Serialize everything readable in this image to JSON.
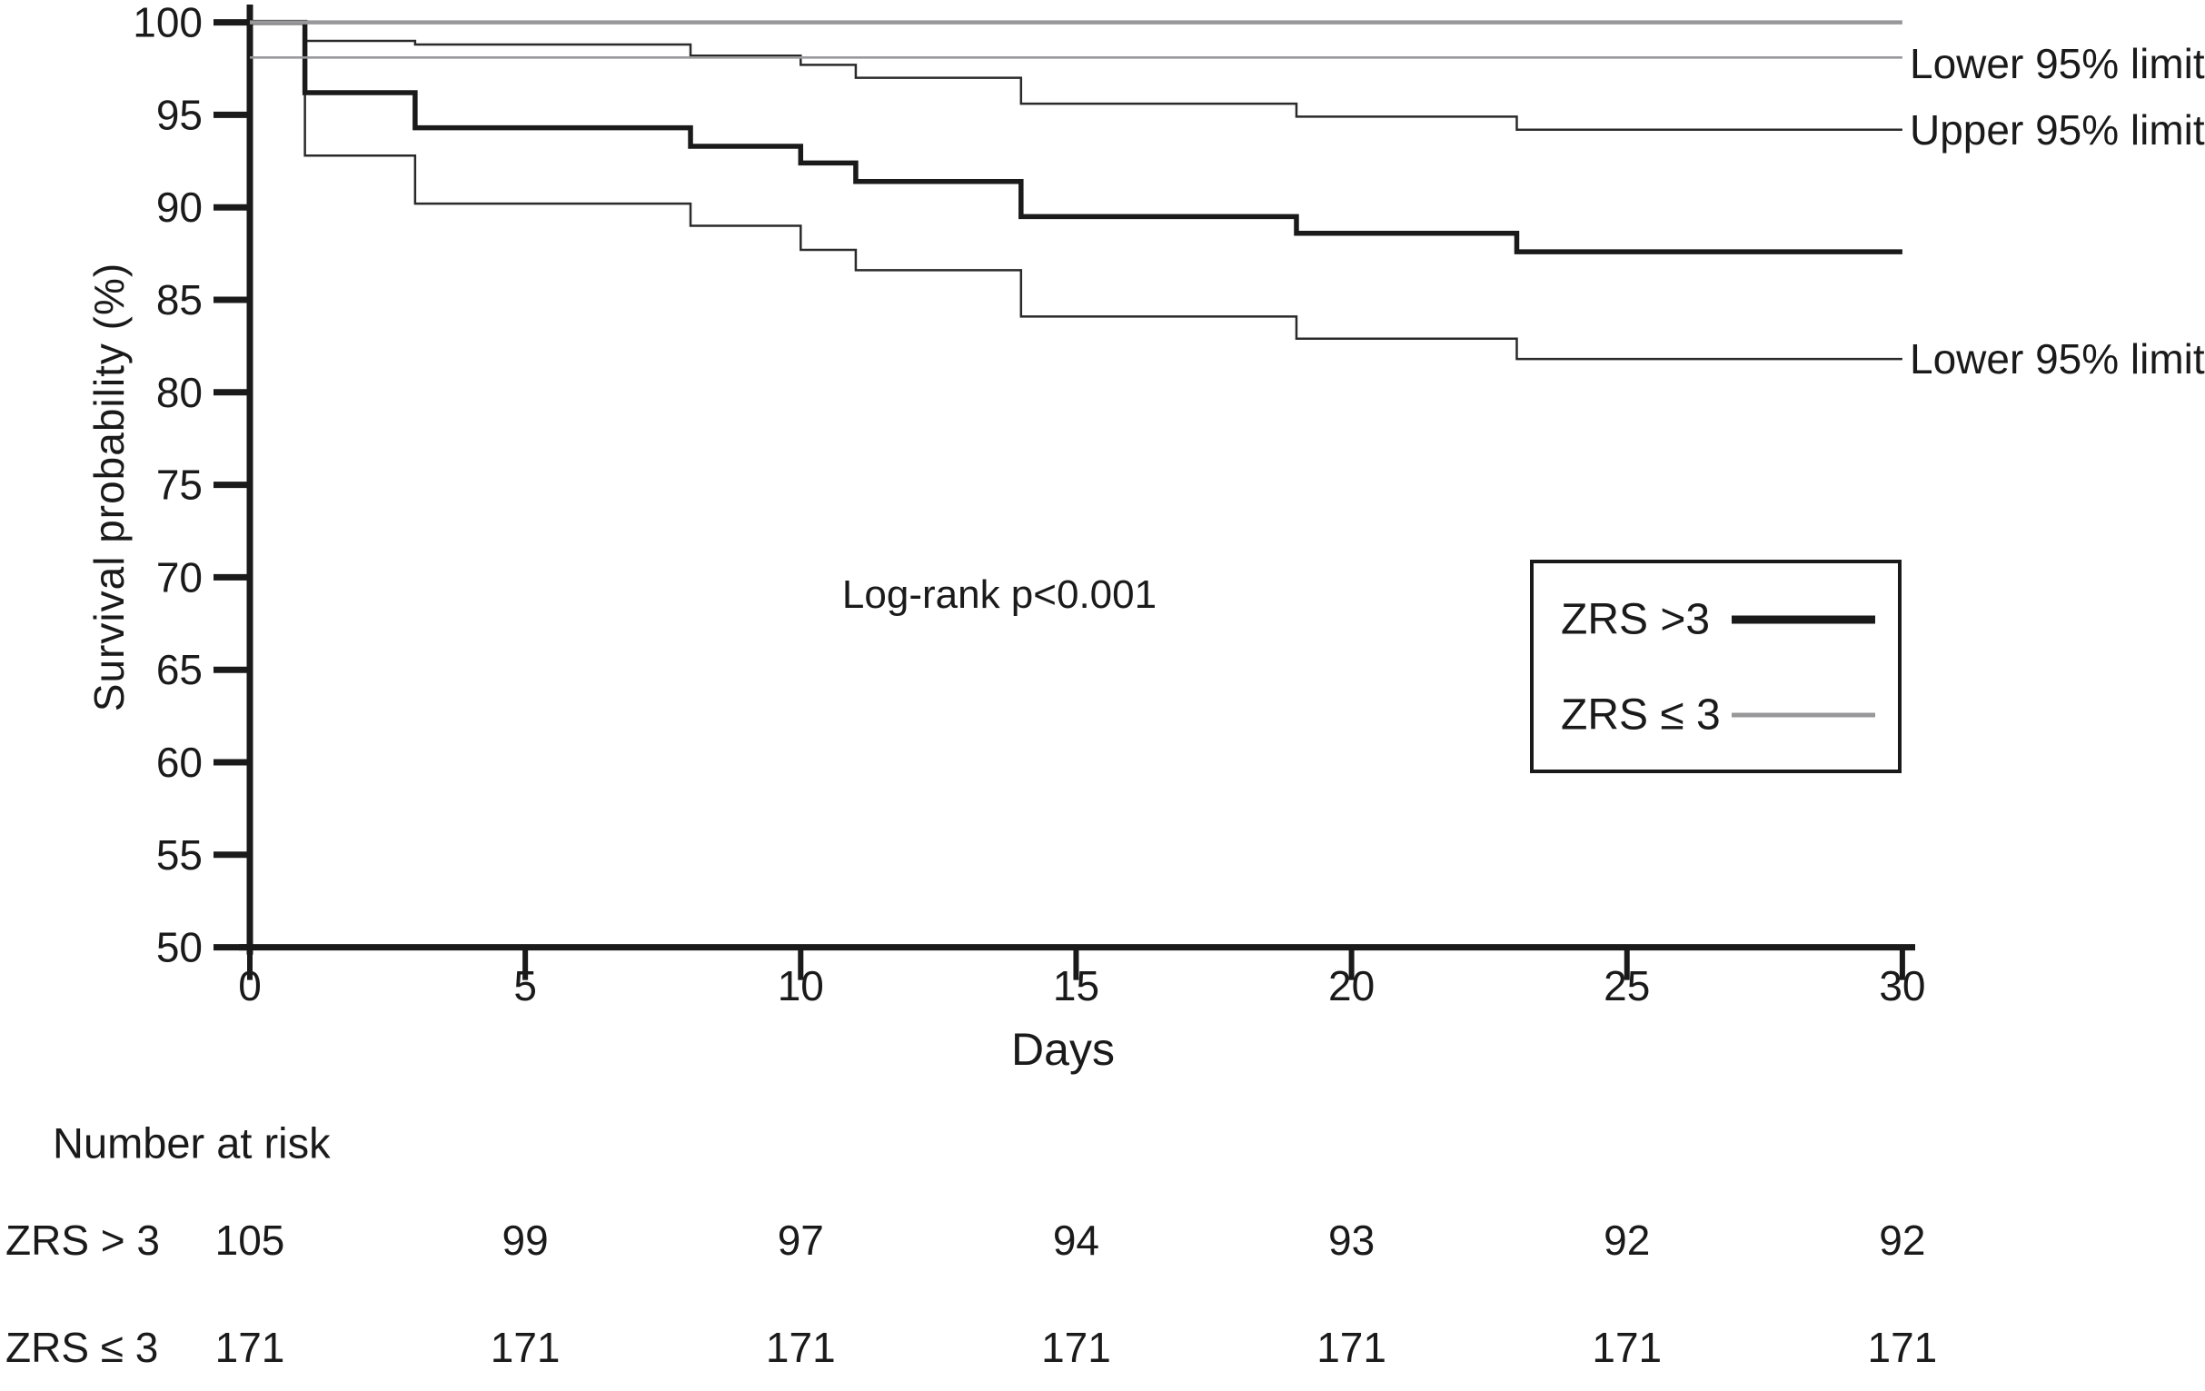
{
  "chart_data": {
    "type": "line",
    "subtype": "kaplan-meier-step",
    "title": "",
    "xlabel": "Days",
    "ylabel": "Survival probability (%)",
    "xlim": [
      0,
      30
    ],
    "ylim": [
      50,
      100
    ],
    "xticks": [
      0,
      5,
      10,
      15,
      20,
      25,
      30
    ],
    "yticks": [
      100,
      95,
      90,
      85,
      80,
      75,
      70,
      65,
      60,
      55,
      50
    ],
    "grid": false,
    "annotation": "Log-rank p<0.001",
    "axis_color": "#1a1a1a",
    "series": [
      {
        "name": "ZRS > 3 upper 95% limit",
        "color": "#2a2a2a",
        "width": 2.5,
        "points": [
          [
            0,
            100
          ],
          [
            1,
            99.0
          ],
          [
            3,
            98.8
          ],
          [
            8,
            98.2
          ],
          [
            10,
            97.7
          ],
          [
            11,
            97.0
          ],
          [
            14,
            95.6
          ],
          [
            19,
            94.9
          ],
          [
            23,
            94.2
          ],
          [
            30,
            94.2
          ]
        ]
      },
      {
        "name": "ZRS > 3 lower 95% limit",
        "color": "#2a2a2a",
        "width": 2.5,
        "points": [
          [
            0,
            100
          ],
          [
            1,
            92.8
          ],
          [
            3,
            90.2
          ],
          [
            8,
            89.0
          ],
          [
            10,
            87.7
          ],
          [
            11,
            86.6
          ],
          [
            14,
            84.1
          ],
          [
            19,
            82.9
          ],
          [
            23,
            81.8
          ],
          [
            30,
            81.8
          ]
        ]
      },
      {
        "name": "ZRS > 3",
        "color": "#1a1a1a",
        "width": 5.5,
        "points": [
          [
            0,
            100
          ],
          [
            1,
            96.2
          ],
          [
            3,
            94.3
          ],
          [
            8,
            93.3
          ],
          [
            10,
            92.4
          ],
          [
            11,
            91.4
          ],
          [
            14,
            89.5
          ],
          [
            19,
            88.6
          ],
          [
            23,
            87.6
          ],
          [
            30,
            87.6
          ]
        ]
      },
      {
        "name": "ZRS ≤ 3",
        "color": "#98989a",
        "width": 4.5,
        "points": [
          [
            0,
            100
          ],
          [
            30,
            100
          ]
        ]
      },
      {
        "name": "ZRS ≤ 3 lower 95% limit",
        "color": "#98989a",
        "width": 2.6,
        "points": [
          [
            0,
            98.1
          ],
          [
            30,
            98.1
          ]
        ]
      }
    ],
    "right_labels": [
      {
        "text": "Lower 95% limit",
        "value": 98.1,
        "dy": 7
      },
      {
        "text": "Upper 95% limit",
        "value": 94.2,
        "dy": 0
      },
      {
        "text": "Lower 95% limit",
        "value": 81.8,
        "dy": 0
      }
    ],
    "legend": {
      "position": "inside right",
      "items": [
        {
          "label": "ZRS >3",
          "color": "#1a1a1a",
          "thickness": 9
        },
        {
          "label": "ZRS ≤ 3",
          "color": "#98989a",
          "thickness": 5
        }
      ]
    }
  },
  "risk_table": {
    "heading": "Number at risk",
    "columns_days": [
      0,
      5,
      10,
      15,
      20,
      25,
      30
    ],
    "rows": [
      {
        "label": "ZRS > 3",
        "values": [
          "105",
          "99",
          "97",
          "94",
          "93",
          "92",
          "92"
        ]
      },
      {
        "label": "ZRS ≤ 3",
        "values": [
          "171",
          "171",
          "171",
          "171",
          "171",
          "171",
          "171"
        ]
      }
    ]
  }
}
